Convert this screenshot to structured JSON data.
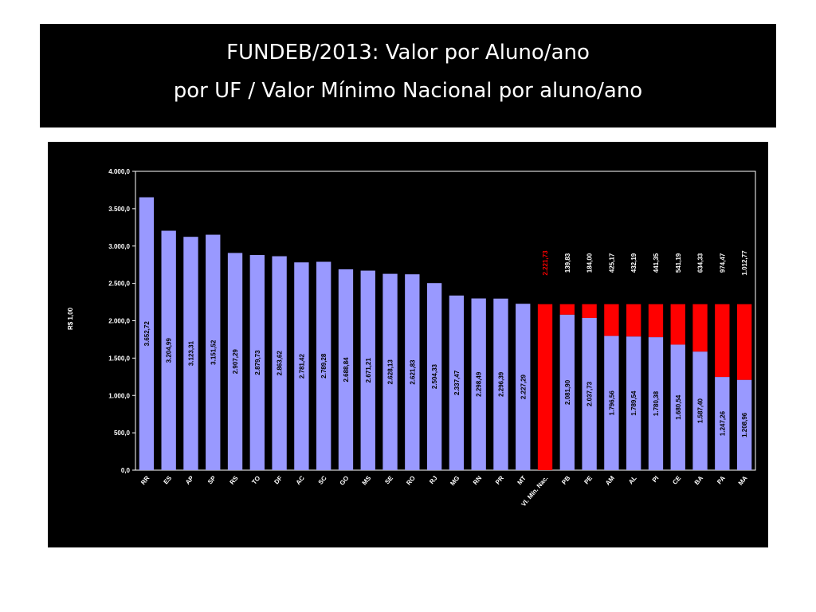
{
  "chart_data": {
    "type": "bar",
    "stacked": true,
    "title": "FUNDEB/2013: Valor por Aluno/ano",
    "subtitle": "por UF / Valor Mínimo Nacional por aluno/ano",
    "y_label": "R$ 1,00",
    "categories": [
      "RR",
      "ES",
      "AP",
      "SP",
      "RS",
      "TO",
      "DF",
      "AC",
      "SC",
      "GO",
      "MS",
      "SE",
      "RO",
      "RJ",
      "MG",
      "RN",
      "PR",
      "MT",
      "Vl. Mín. Nac.",
      "PB",
      "PE",
      "AM",
      "AL",
      "PI",
      "CE",
      "BA",
      "PA",
      "MA"
    ],
    "series": [
      {
        "color": "#9999ff",
        "values": [
          3652.72,
          3204.99,
          3123.31,
          3151.52,
          2907.29,
          2879.73,
          2863.62,
          2781.42,
          2789.28,
          2688.84,
          2671.21,
          2628.13,
          2621.83,
          2504.33,
          2337.47,
          2298.49,
          2296.39,
          2227.29,
          null,
          2081.9,
          2037.73,
          1796.56,
          1789.54,
          1780.38,
          1680.54,
          1587.4,
          1247.26,
          1208.96
        ],
        "value_labels": [
          "3.652,72",
          "3.204,99",
          "3.123,31",
          "3.151,52",
          "2.907,29",
          "2.879,73",
          "2.863,62",
          "2.781,42",
          "2.789,28",
          "2.688,84",
          "2.671,21",
          "2.628,13",
          "2.621,83",
          "2.504,33",
          "2.337,47",
          "2.298,49",
          "2.296,39",
          "2.227,29",
          null,
          "2.081,90",
          "2.037,73",
          "1.796,56",
          "1.789,54",
          "1.780,38",
          "1.680,54",
          "1.587,40",
          "1.247,26",
          "1.208,96"
        ]
      },
      {
        "color": "#ff0000",
        "values": [
          null,
          null,
          null,
          null,
          null,
          null,
          null,
          null,
          null,
          null,
          null,
          null,
          null,
          null,
          null,
          null,
          null,
          null,
          2221.73,
          139.83,
          184.0,
          425.17,
          432.19,
          441.35,
          541.19,
          634.33,
          974.47,
          1012.77
        ],
        "value_labels": [
          null,
          null,
          null,
          null,
          null,
          null,
          null,
          null,
          null,
          null,
          null,
          null,
          null,
          null,
          null,
          null,
          null,
          null,
          "2.221,73",
          "139,83",
          "184,00",
          "425,17",
          "432,19",
          "441,35",
          "541,19",
          "634,33",
          "974,47",
          "1.012,77"
        ]
      }
    ],
    "ylim": [
      0,
      4000
    ],
    "yticks": [
      {
        "value": 0,
        "label": "0,0"
      },
      {
        "value": 500,
        "label": "500,0"
      },
      {
        "value": 1000,
        "label": "1.000,0"
      },
      {
        "value": 1500,
        "label": "1.500,0"
      },
      {
        "value": 2000,
        "label": "2.000,0"
      },
      {
        "value": 2500,
        "label": "2.500,0"
      },
      {
        "value": 3000,
        "label": "3.000,0"
      },
      {
        "value": 3500,
        "label": "3.500,0"
      },
      {
        "value": 4000,
        "label": "4.000,0"
      }
    ]
  }
}
